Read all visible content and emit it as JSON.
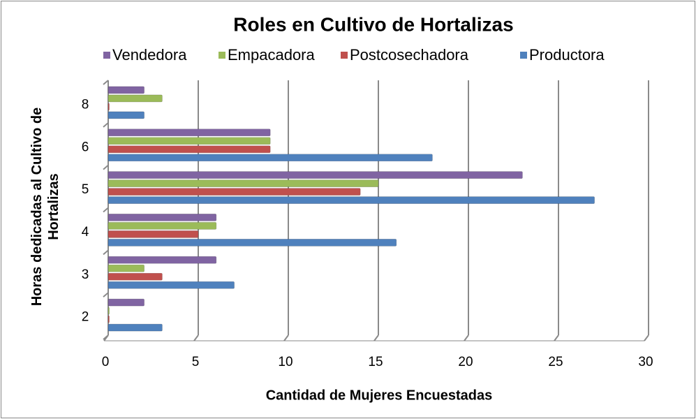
{
  "chart_data": {
    "type": "bar",
    "orientation": "horizontal",
    "title": "Roles en Cultivo de Hortalizas",
    "xlabel": "Cantidad de Mujeres Encuestadas",
    "ylabel": "Horas dedicadas al Cultivo de Hortalizas",
    "categories": [
      "2",
      "3",
      "4",
      "5",
      "6",
      "8"
    ],
    "series": [
      {
        "name": "Vendedora",
        "color": "#8064a2",
        "values": [
          2,
          6,
          6,
          23,
          9,
          2
        ]
      },
      {
        "name": "Empacadora",
        "color": "#9bbb59",
        "values": [
          0,
          2,
          6,
          15,
          9,
          3
        ]
      },
      {
        "name": "Postcosechadora",
        "color": "#c0504d",
        "values": [
          0,
          3,
          5,
          14,
          9,
          0
        ]
      },
      {
        "name": "Productora",
        "color": "#4f81bd",
        "values": [
          3,
          7,
          16,
          27,
          18,
          2
        ]
      }
    ],
    "xlim": [
      0,
      30
    ],
    "xticks": [
      0,
      5,
      10,
      15,
      20,
      25,
      30
    ],
    "grid": true,
    "legend": "top"
  }
}
